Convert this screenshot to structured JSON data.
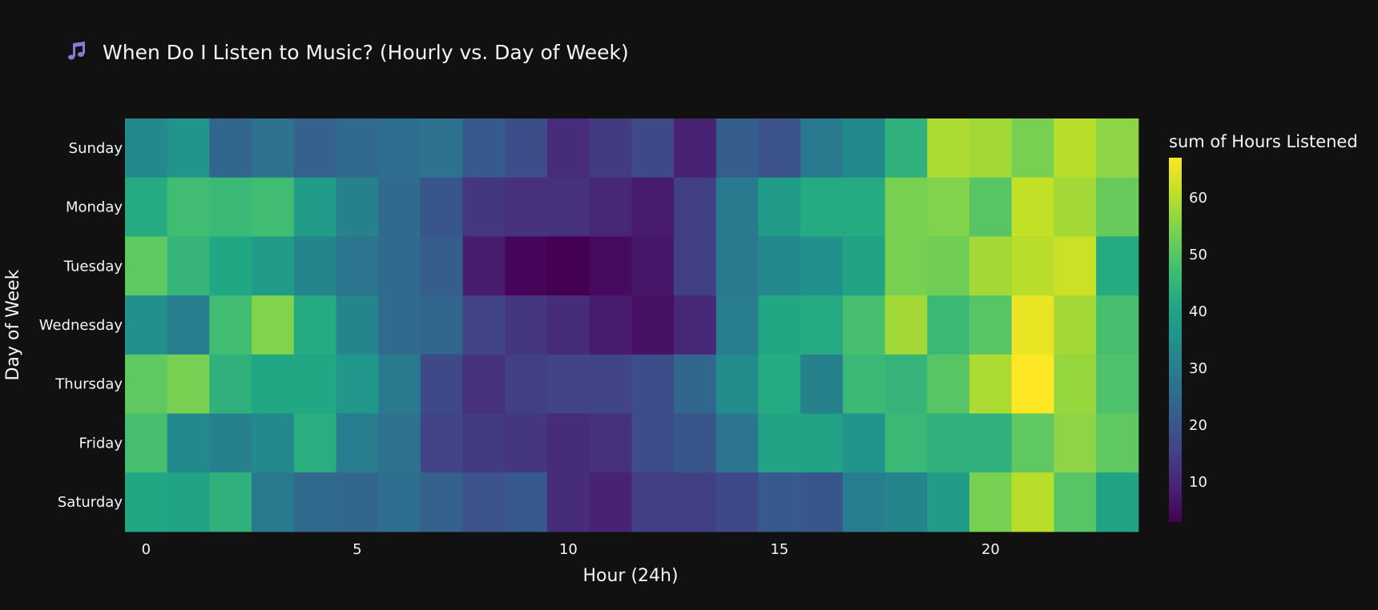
{
  "chart_data": {
    "type": "heatmap",
    "title": "When Do I Listen to Music? (Hourly vs. Day of Week)",
    "xlabel": "Hour (24h)",
    "ylabel": "Day of Week",
    "x": [
      0,
      1,
      2,
      3,
      4,
      5,
      6,
      7,
      8,
      9,
      10,
      11,
      12,
      13,
      14,
      15,
      16,
      17,
      18,
      19,
      20,
      21,
      22,
      23
    ],
    "y": [
      "Sunday",
      "Monday",
      "Tuesday",
      "Wednesday",
      "Thursday",
      "Friday",
      "Saturday"
    ],
    "x_tick_values": [
      0,
      5,
      10,
      15,
      20
    ],
    "x_tick_labels": [
      "0",
      "5",
      "10",
      "15",
      "20"
    ],
    "z": [
      [
        33,
        36,
        24,
        27,
        23,
        25,
        26,
        27,
        21,
        18,
        11,
        14,
        17,
        9,
        22,
        19,
        29,
        33,
        44,
        59,
        58,
        54,
        60,
        56
      ],
      [
        42,
        47,
        46,
        47,
        38,
        31,
        25,
        20,
        13,
        12,
        12,
        10,
        8,
        15,
        29,
        38,
        42,
        42,
        54,
        55,
        50,
        61,
        58,
        52
      ],
      [
        51,
        45,
        41,
        38,
        32,
        28,
        25,
        22,
        8,
        4,
        3,
        5,
        7,
        15,
        29,
        33,
        35,
        40,
        54,
        53,
        58,
        60,
        62,
        42
      ],
      [
        35,
        30,
        47,
        55,
        42,
        32,
        25,
        24,
        16,
        13,
        11,
        8,
        6,
        10,
        30,
        41,
        42,
        48,
        58,
        46,
        50,
        65,
        58,
        48
      ],
      [
        51,
        54,
        44,
        41,
        41,
        37,
        29,
        17,
        12,
        15,
        16,
        16,
        18,
        24,
        34,
        42,
        31,
        46,
        45,
        50,
        59,
        67,
        57,
        49
      ],
      [
        48,
        33,
        31,
        33,
        43,
        30,
        27,
        16,
        14,
        13,
        11,
        12,
        18,
        20,
        28,
        40,
        40,
        36,
        46,
        44,
        44,
        51,
        56,
        51
      ],
      [
        41,
        40,
        44,
        29,
        25,
        24,
        26,
        23,
        19,
        21,
        11,
        9,
        15,
        15,
        17,
        21,
        20,
        30,
        32,
        38,
        54,
        60,
        50,
        40
      ]
    ],
    "colorscale": "viridis",
    "zmin": 3,
    "zmax": 67,
    "colorbar": {
      "title": "sum of Hours Listened",
      "tick_values": [
        10,
        20,
        30,
        40,
        50,
        60
      ],
      "tick_labels": [
        "10",
        "20",
        "30",
        "40",
        "50",
        "60"
      ]
    }
  },
  "title_icon": "musical-notes-icon",
  "colors": {
    "background": "#111111",
    "text": "#f2f5fa",
    "icon": "#8a7ad8"
  }
}
